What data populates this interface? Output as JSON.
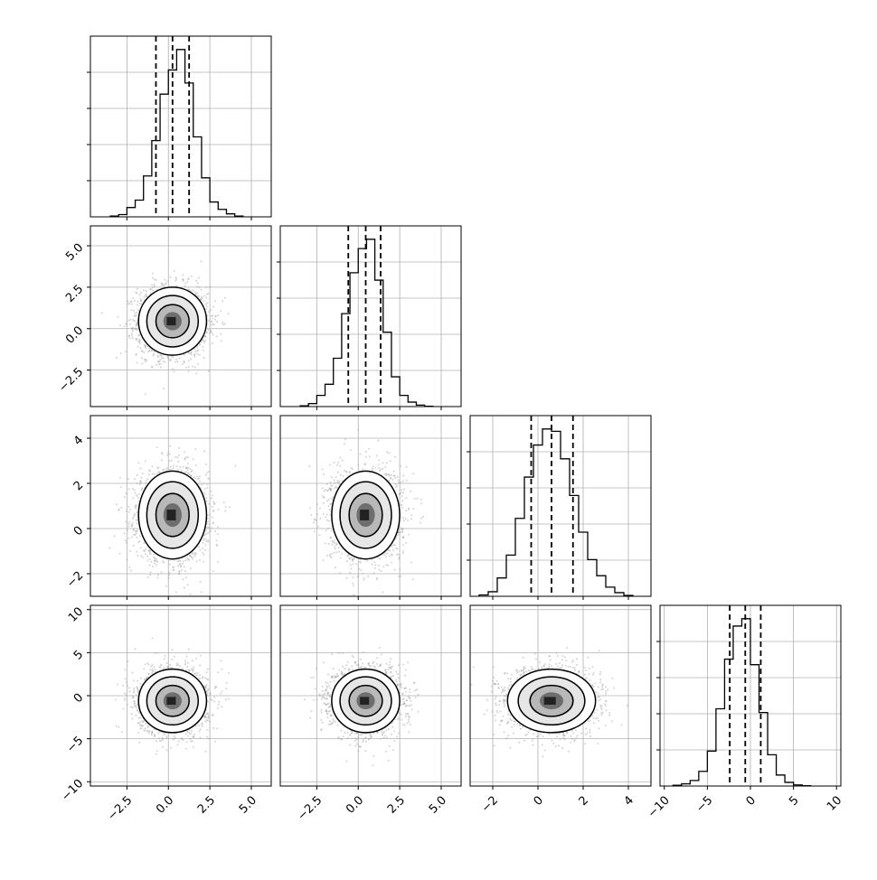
{
  "chart_data": {
    "type": "corner",
    "n_params": 4,
    "params": [
      {
        "range": [
          -4.7,
          6.2
        ],
        "ticks": [
          -2.5,
          0.0,
          2.5,
          5.0
        ],
        "tick_labels": [
          "−2.5",
          "0.0",
          "2.5",
          "5.0"
        ],
        "quantiles": [
          -0.75,
          0.25,
          1.25
        ],
        "hist_edges": [
          -3.5,
          -3.0,
          -2.5,
          -2.0,
          -1.5,
          -1.0,
          -0.5,
          0.0,
          0.5,
          1.0,
          1.5,
          2.0,
          2.5,
          3.0,
          3.5,
          4.0,
          4.5
        ],
        "hist_counts": [
          2,
          6,
          25,
          45,
          110,
          205,
          330,
          395,
          450,
          360,
          215,
          105,
          40,
          20,
          8,
          2
        ],
        "mean": 0.25,
        "sd": 1.0
      },
      {
        "range": [
          -4.7,
          6.2
        ],
        "ticks": [
          -2.5,
          0.0,
          2.5,
          5.0
        ],
        "tick_labels": [
          "−2.5",
          "0.0",
          "2.5",
          "5.0"
        ],
        "quantiles": [
          -0.6,
          0.45,
          1.35
        ],
        "hist_edges": [
          -3.5,
          -3.0,
          -2.5,
          -2.0,
          -1.5,
          -1.0,
          -0.5,
          0.0,
          0.5,
          1.0,
          1.5,
          2.0,
          2.5,
          3.0,
          3.5,
          4.0,
          4.5
        ],
        "hist_counts": [
          2,
          8,
          30,
          60,
          130,
          250,
          360,
          425,
          450,
          340,
          200,
          80,
          30,
          12,
          4,
          1
        ],
        "mean": 0.45,
        "sd": 1.0
      },
      {
        "range": [
          -3.0,
          5.0
        ],
        "ticks": [
          -2,
          0,
          2,
          4
        ],
        "tick_labels": [
          "−2",
          "0",
          "2",
          "4"
        ],
        "quantiles": [
          -0.3,
          0.6,
          1.55
        ],
        "hist_edges": [
          -2.6,
          -2.2,
          -1.8,
          -1.4,
          -1.0,
          -0.6,
          -0.2,
          0.2,
          0.6,
          1.0,
          1.4,
          1.8,
          2.2,
          2.6,
          3.0,
          3.4,
          3.8,
          4.2
        ],
        "hist_counts": [
          3,
          10,
          40,
          90,
          170,
          260,
          330,
          365,
          360,
          300,
          220,
          140,
          80,
          45,
          20,
          8,
          2
        ],
        "mean": 0.6,
        "sd": 0.95
      },
      {
        "range": [
          -10.5,
          10.5
        ],
        "ticks": [
          -10,
          -5,
          0,
          5,
          10
        ],
        "tick_labels": [
          "−10",
          "−5",
          "0",
          "5",
          "10"
        ],
        "quantiles": [
          -2.4,
          -0.6,
          1.2
        ],
        "hist_edges": [
          -9.0,
          -8.0,
          -7.0,
          -6.0,
          -5.0,
          -4.0,
          -3.0,
          -2.0,
          -1.0,
          0.0,
          1.0,
          2.0,
          3.0,
          4.0,
          5.0,
          6.0,
          7.0
        ],
        "hist_counts": [
          2,
          6,
          15,
          40,
          95,
          210,
          345,
          435,
          455,
          330,
          200,
          85,
          30,
          10,
          3,
          1
        ],
        "mean": -0.6,
        "sd": 1.8
      }
    ],
    "pair_grid": true,
    "contour_levels": 3,
    "colors": {
      "line": "#000000",
      "scatter": "#9e9e9e",
      "grid": "#b0b0b0",
      "dash": "#000000"
    }
  }
}
